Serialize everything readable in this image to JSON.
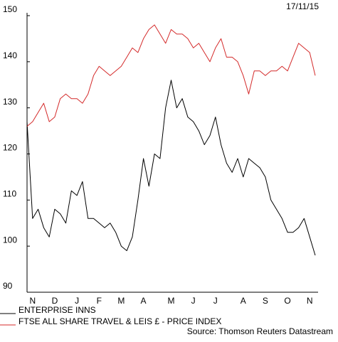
{
  "chart_data": {
    "type": "line",
    "date": "17/11/15",
    "source": "Source: Thomson Reuters Datastream",
    "categories": [
      null,
      "N",
      null,
      null,
      null,
      "D",
      null,
      null,
      null,
      "J",
      null,
      null,
      null,
      "F",
      null,
      null,
      null,
      "M",
      null,
      null,
      null,
      "A",
      null,
      null,
      null,
      null,
      "M",
      null,
      null,
      null,
      "J",
      null,
      null,
      null,
      "J",
      null,
      null,
      null,
      null,
      "A",
      null,
      null,
      null,
      "S",
      null,
      null,
      null,
      "O",
      null,
      null,
      null,
      "N",
      null
    ],
    "series": [
      {
        "name": "ENTERPRISE INNS",
        "color": "#000000",
        "values": [
          127,
          106,
          108,
          104,
          102,
          108,
          107,
          105,
          112,
          111,
          114,
          106,
          106,
          105,
          104,
          105,
          103,
          100,
          99,
          102,
          110,
          119,
          113,
          120,
          119,
          130,
          136,
          130,
          132,
          128,
          127,
          125,
          122,
          124,
          128,
          122,
          118,
          116,
          119,
          115,
          119,
          118,
          117,
          115,
          110,
          108,
          106,
          103,
          103,
          104,
          106,
          102,
          98
        ]
      },
      {
        "name": "FTSE ALL SHARE TRAVEL & LEIS £ - PRICE INDEX",
        "color": "#d42a2a",
        "values": [
          126,
          127,
          129,
          131,
          127,
          128,
          132,
          133,
          132,
          132,
          131,
          133,
          137,
          139,
          138,
          137,
          138,
          139,
          141,
          143,
          142,
          145,
          147,
          148,
          146,
          144,
          147,
          146,
          146,
          145,
          143,
          144,
          142,
          140,
          143,
          145,
          141,
          141,
          140,
          137,
          133,
          138,
          138,
          137,
          138,
          138,
          139,
          138,
          141,
          144,
          143,
          142,
          137
        ]
      }
    ],
    "ylim": [
      90,
      150
    ],
    "yticks": [
      90,
      100,
      110,
      120,
      130,
      140,
      150
    ]
  }
}
